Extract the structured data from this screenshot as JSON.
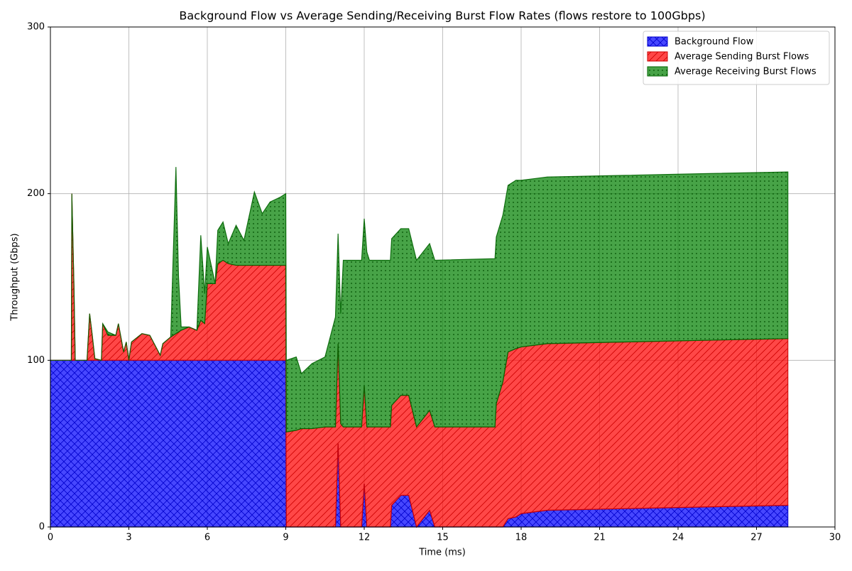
{
  "chart_data": {
    "type": "stacked_area",
    "title": "Background Flow vs Average Sending/Receiving Burst Flow Rates (flows restore to 100Gbps)",
    "x_label": "Time (ms)",
    "y_label": "Throughput (Gbps)",
    "x": [
      0,
      0.8,
      0.82,
      0.9,
      0.95,
      1.4,
      1.5,
      1.6,
      1.7,
      1.95,
      2.0,
      2.2,
      2.5,
      2.6,
      2.8,
      2.9,
      3.0,
      3.1,
      3.5,
      3.8,
      4.2,
      4.3,
      4.6,
      4.8,
      4.9,
      5.0,
      5.3,
      5.6,
      5.75,
      5.9,
      6.0,
      6.3,
      6.4,
      6.6,
      6.8,
      7.1,
      7.4,
      7.8,
      8.1,
      8.4,
      8.8,
      9.0,
      9.02,
      9.4,
      9.6,
      10,
      10.5,
      10.9,
      11.0,
      11.1,
      11.2,
      11.9,
      12.0,
      12.1,
      12.2,
      13.0,
      13.05,
      13.4,
      13.7,
      14.0,
      14.5,
      14.7,
      17.0,
      17.05,
      17.3,
      17.5,
      17.8,
      18.0,
      18.5,
      19.0,
      22,
      25,
      28.2
    ],
    "series": [
      {
        "name": "Background Flow",
        "color": "#0000ff",
        "edge": "#0000cc",
        "hatch": "cross",
        "values": [
          100,
          100,
          100,
          100,
          100,
          100,
          100,
          100,
          100,
          100,
          100,
          100,
          100,
          100,
          100,
          100,
          100,
          100,
          100,
          100,
          100,
          100,
          100,
          100,
          100,
          100,
          100,
          100,
          100,
          100,
          100,
          100,
          100,
          100,
          100,
          100,
          100,
          100,
          100,
          100,
          100,
          100,
          0,
          0,
          0,
          0,
          0,
          0,
          50,
          0,
          0,
          0,
          26,
          0,
          0,
          0,
          13,
          19,
          19,
          0,
          10,
          0,
          0,
          0,
          0,
          5,
          6,
          8,
          9,
          10,
          11,
          12,
          13
        ]
      },
      {
        "name": "Average Sending Burst Flows",
        "color": "#ff0000",
        "edge": "#cc0000",
        "hatch": "diag",
        "values": [
          0,
          0,
          100,
          45,
          0,
          0,
          28,
          15,
          1,
          0,
          22,
          15,
          15,
          22,
          5,
          11,
          0,
          11,
          16,
          15,
          3,
          10,
          14,
          16,
          17,
          18,
          20,
          18,
          24,
          22,
          46,
          46,
          58,
          60,
          58,
          57,
          57,
          57,
          57,
          57,
          57,
          57,
          57,
          58,
          59,
          59,
          60,
          60,
          60,
          62,
          60,
          60,
          59,
          60,
          60,
          60,
          60,
          60,
          60,
          60,
          60,
          60,
          60,
          74,
          87,
          100,
          101,
          100,
          100,
          100,
          100,
          100,
          100
        ]
      },
      {
        "name": "Average Receiving Burst Flows",
        "color": "#008000",
        "edge": "#006400",
        "hatch": "dots",
        "values": [
          0,
          0,
          0,
          0,
          0,
          0,
          0,
          0,
          0,
          0,
          0,
          2,
          0,
          0,
          0,
          0,
          0,
          0,
          0,
          0,
          0,
          0,
          0,
          100,
          33,
          2,
          0,
          0,
          51,
          18,
          22,
          0,
          20,
          23,
          12,
          24,
          15,
          44,
          31,
          38,
          41,
          43,
          43,
          44,
          33,
          39,
          42,
          66,
          66,
          66,
          100,
          100,
          100,
          105,
          100,
          100,
          100,
          100,
          100,
          100,
          100,
          100,
          101,
          100,
          100,
          100,
          101,
          100,
          100,
          100,
          100,
          100,
          100
        ]
      }
    ],
    "xlim": [
      0,
      30
    ],
    "xticks": [
      0,
      3,
      6,
      9,
      12,
      15,
      18,
      21,
      24,
      27,
      30
    ],
    "ylim": [
      0,
      300
    ],
    "yticks": [
      0,
      100,
      200,
      300
    ],
    "grid": true,
    "legend": "upper right"
  }
}
